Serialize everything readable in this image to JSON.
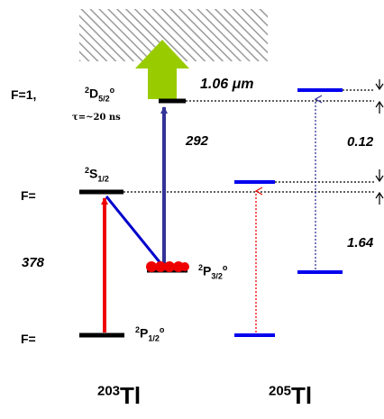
{
  "labels": {
    "f_upper": "F=1,",
    "f_middle": "F=",
    "f_lower": "F=",
    "term_d_sup": "2",
    "term_d_main": "D",
    "term_d_sub": "5/2",
    "term_d_deg": "o",
    "lifetime": "τ=~20 ns",
    "term_s_sup": "2",
    "term_s_main": "S",
    "term_s_sub": "1/2",
    "term_p32_sup": "2",
    "term_p32_main": "P",
    "term_p32_sub": "3/2",
    "term_p32_deg": "o",
    "term_p12_sup": "2",
    "term_p12_main": "P",
    "term_p12_sub": "1/2",
    "term_p12_deg": "o",
    "wavelength_378": "378",
    "wavelength_292": "292",
    "wavelength_106": "1.06",
    "wavelength_unit": "μm",
    "shift_012": "0.12",
    "shift_164": "1.64",
    "iso_203_mass": "203",
    "iso_203_sym": "Tl",
    "iso_205_mass": "205",
    "iso_205_sym": "Tl"
  },
  "colors": {
    "level_black": "#000000",
    "level_blue": "#0000ee",
    "arrow_red": "#ee0000",
    "arrow_blue": "#333399",
    "arrow_green": "#99cc00",
    "hatch": "#a0a0a0",
    "dots_red": "#ee0000"
  },
  "icons": {
    "continuum": "hatched-continuum",
    "ionization": "green-up-arrow",
    "atoms": "red-dot-cluster"
  }
}
